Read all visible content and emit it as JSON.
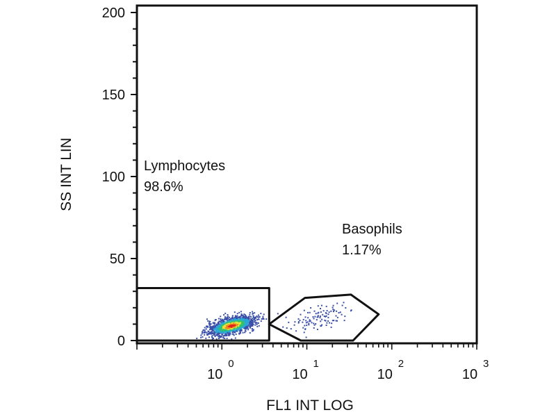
{
  "chart_data": {
    "type": "scatter",
    "title": "",
    "xlabel": "FL1 INT LOG",
    "ylabel": "SS INT LIN",
    "xscale": "log",
    "xlim": [
      0.1,
      1000
    ],
    "ylim": [
      0,
      200
    ],
    "grid": false,
    "x_ticks": [
      {
        "base": "10",
        "exp": "0",
        "value": 1
      },
      {
        "base": "10",
        "exp": "1",
        "value": 10
      },
      {
        "base": "10",
        "exp": "2",
        "value": 100
      },
      {
        "base": "10",
        "exp": "3",
        "value": 1000
      }
    ],
    "y_ticks": [
      {
        "label": "0",
        "value": 0
      },
      {
        "label": "50",
        "value": 50
      },
      {
        "label": "100",
        "value": 100
      },
      {
        "label": "150",
        "value": 150
      },
      {
        "label": "200",
        "value": 200
      }
    ],
    "populations": [
      {
        "name": "Lymphocytes",
        "percent": "98.6%",
        "center": [
          1.3,
          9
        ],
        "spread_log": 0.14,
        "spread_y": 3,
        "density": "high"
      },
      {
        "name": "Basophils",
        "percent": "1.17%",
        "center": [
          15,
          14
        ],
        "spread_log": 0.22,
        "spread_y": 4,
        "density": "low"
      }
    ],
    "gates": [
      {
        "name": "Lymphocytes",
        "shape": "rectangle",
        "points": [
          [
            0.1,
            0
          ],
          [
            0.1,
            32
          ],
          [
            3.6,
            32
          ],
          [
            3.6,
            0
          ]
        ]
      },
      {
        "name": "Basophils",
        "shape": "polygon",
        "points": [
          [
            3.6,
            10
          ],
          [
            9.5,
            26
          ],
          [
            33,
            28
          ],
          [
            70,
            16
          ],
          [
            35,
            0
          ],
          [
            8.5,
            0
          ]
        ]
      }
    ],
    "labels": [
      {
        "gate": "Lymphocytes",
        "name": "Lymphocytes",
        "percent": "98.6%"
      },
      {
        "gate": "Basophils",
        "name": "Basophils",
        "percent": "1.17%"
      }
    ],
    "density_colors": [
      "#3a4fa8",
      "#2aa7d6",
      "#33c26b",
      "#e7e13b",
      "#f08a1c",
      "#e02020"
    ]
  }
}
